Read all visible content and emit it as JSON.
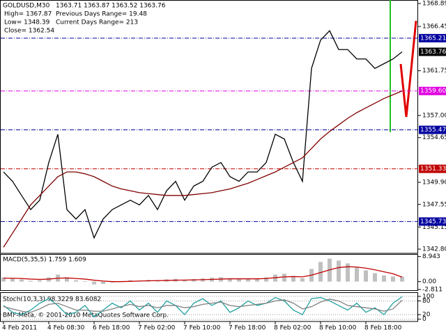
{
  "header": {
    "title": "GOLDUSD,M30",
    "ohlc": "1363.71 1363.87 1363.52 1363.76",
    "high": "High= 1367.87",
    "prev_range": "Previous Days Range= 19.48",
    "low": "Low= 1348.39",
    "cur_range": "Current Days Range= 213",
    "close": "Close= 1362.54"
  },
  "copyright": "BMF-Meta, © 2001-2010 MetaQuotes Software Corp.",
  "chart_data": [
    {
      "type": "line",
      "categories": [
        "4 Feb 2011",
        null,
        null,
        null,
        null,
        "4 Feb 08:30",
        null,
        null,
        null,
        null,
        "6 Feb 18:00",
        null,
        null,
        null,
        null,
        "7 Feb 02:00",
        null,
        null,
        null,
        null,
        "7 Feb 10:00",
        null,
        null,
        null,
        null,
        "7 Feb 18:00",
        null,
        null,
        null,
        null,
        "8 Feb 02:00",
        null,
        null,
        null,
        null,
        "8 Feb 10:00",
        null,
        null,
        null,
        null,
        "8 Feb 18:00",
        null,
        null,
        null,
        null
      ],
      "ylim": [
        1342.36,
        1369.19
      ],
      "yticks": [
        1368.89,
        1366.45,
        1361.75,
        {
          "value": 1357,
          "label": "1357.00"
        },
        1354.65,
        {
          "value": 1349.9,
          "label": "1349.90"
        },
        1347.55,
        1345.15,
        {
          "value": 1342.8,
          "label": "1342.80"
        }
      ],
      "levels": [
        {
          "value": 1365.21,
          "color": "#0000a0"
        },
        {
          "value": 1359.6,
          "label": "1359.60",
          "color": "#e000e0"
        },
        {
          "value": 1355.47,
          "color": "#0000a0"
        },
        {
          "value": 1351.33,
          "color": "#c00000"
        },
        {
          "value": 1345.73,
          "color": "#0000a0"
        }
      ],
      "current": 1363.76,
      "series": [
        {
          "type": "line",
          "color": "#000000",
          "values": [
            1351,
            1350,
            1348.5,
            1347,
            1348,
            1352,
            1355,
            1347,
            1346,
            1347,
            1344,
            1346,
            1347,
            1347.5,
            1348,
            1347.5,
            1348.5,
            1347,
            1349,
            1350,
            1348,
            1349.5,
            1350,
            1351.5,
            1352,
            1350.5,
            1350,
            1351,
            1351,
            1352,
            1355,
            1354.5,
            1352,
            1350,
            1362,
            1365,
            1366,
            1364,
            1364,
            1363,
            1363,
            1362,
            1362.5,
            1363,
            1363.76
          ]
        },
        {
          "type": "line",
          "color": "#800000",
          "values": [
            1343,
            1344.5,
            1346,
            1347.5,
            1348.5,
            1349.5,
            1350.5,
            1351,
            1351,
            1350.8,
            1350.5,
            1350,
            1349.5,
            1349.2,
            1349,
            1348.8,
            1348.7,
            1348.6,
            1348.5,
            1348.5,
            1348.5,
            1348.6,
            1348.7,
            1348.8,
            1349,
            1349.2,
            1349.5,
            1349.8,
            1350.2,
            1350.6,
            1351,
            1351.5,
            1352,
            1352.5,
            1353.5,
            1354.5,
            1355.3,
            1356,
            1356.7,
            1357.3,
            1357.8,
            1358.3,
            1358.8,
            1359.2,
            1359.6
          ]
        }
      ]
    },
    {
      "type": "bar",
      "title": "MACD(5,35,5) 1.759 1.609",
      "ylim": [
        -3.3,
        9.6
      ],
      "yticks": [
        8.943,
        {
          "value": 0,
          "label": "0.00"
        },
        -2.811
      ],
      "series": [
        {
          "type": "bar",
          "color": "#c0c0c0",
          "values": [
            1.5,
            1.2,
            0.8,
            0.3,
            0.5,
            1.5,
            2.5,
            1.5,
            0.5,
            0.2,
            -1,
            -0.8,
            -0.3,
            0.2,
            0.5,
            0.3,
            0.6,
            0.4,
            0.8,
            1,
            0.6,
            0.9,
            1.1,
            1.4,
            1.6,
            1.2,
            1,
            1.1,
            1.2,
            1.5,
            2.5,
            2.8,
            2,
            1.2,
            4.5,
            7,
            8.2,
            7.5,
            6.5,
            5,
            4,
            3,
            2.2,
            1.8,
            1.76
          ]
        },
        {
          "type": "line",
          "color": "#c00000",
          "values": [
            1.2,
            1.2,
            1.1,
            0.9,
            0.8,
            0.9,
            1.2,
            1.3,
            1.1,
            0.9,
            0.5,
            0.2,
            0,
            0,
            0.1,
            0.2,
            0.3,
            0.35,
            0.4,
            0.5,
            0.55,
            0.6,
            0.7,
            0.8,
            0.9,
            1,
            1,
            1,
            1,
            1.1,
            1.4,
            1.7,
            1.8,
            1.7,
            2.3,
            3.2,
            4.2,
            5,
            5.3,
            5.2,
            4.8,
            4.2,
            3.5,
            2.8,
            1.61
          ]
        }
      ]
    },
    {
      "type": "line",
      "title": "Stoch(10,3,3) 98.3229 83.6082",
      "ylim": [
        -10,
        115
      ],
      "yticks": [
        100,
        80,
        20,
        0
      ],
      "grid": true,
      "series": [
        {
          "type": "line",
          "color": "#20a0a0",
          "values": [
            60,
            30,
            20,
            40,
            70,
            90,
            60,
            20,
            30,
            60,
            10,
            40,
            70,
            50,
            80,
            40,
            70,
            30,
            80,
            60,
            20,
            70,
            90,
            60,
            80,
            30,
            50,
            80,
            60,
            70,
            95,
            80,
            40,
            20,
            90,
            95,
            80,
            60,
            40,
            70,
            30,
            50,
            20,
            70,
            98.3229
          ]
        },
        {
          "type": "line",
          "color": "#808080",
          "values": [
            55,
            45,
            35,
            30,
            45,
            65,
            70,
            55,
            40,
            40,
            35,
            35,
            45,
            55,
            65,
            55,
            60,
            50,
            60,
            60,
            50,
            55,
            65,
            70,
            75,
            60,
            55,
            60,
            65,
            70,
            80,
            85,
            70,
            45,
            55,
            75,
            88,
            80,
            60,
            55,
            50,
            45,
            35,
            45,
            83.6082
          ]
        }
      ]
    }
  ]
}
